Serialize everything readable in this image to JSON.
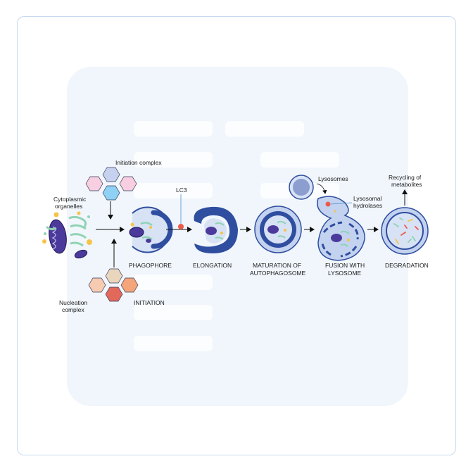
{
  "labels": {
    "initiation_complex": "Initiation complex",
    "cytoplasmic_1": "Cytoplasmic",
    "cytoplasmic_2": "organelles",
    "nucleation_1": "Nucleation",
    "nucleation_2": "complex",
    "initiation": "INITIATION",
    "lc3": "LC3",
    "phagophore": "PHAGOPHORE",
    "elongation": "ELONGATION",
    "maturation_1": "MATURATION OF",
    "maturation_2": "AUTOPHAGOSOME",
    "lysosomes": "Lysosomes",
    "hydrolases_1": "Lysosomal",
    "hydrolases_2": "hydrolases",
    "fusion_1": "FUSION WITH",
    "fusion_2": "LYSOSOME",
    "recycling_1": "Recycling of",
    "recycling_2": "metabolites",
    "degradation": "DEGRADATION"
  },
  "colors": {
    "card_border": "#c9daf0",
    "background_panel": "#f1f6fc",
    "membrane_dark": "#2f4ea0",
    "membrane_light": "#bccbeb",
    "cytoplasm": "#d7e2f5",
    "mitochondria": "#4b3a9b",
    "er_green": "#8fd3b4",
    "lc3_red": "#ec5a4a",
    "vesicle_yellow": "#f6c34a",
    "hex_blue": "#c5d1ef",
    "hex_pink": "#f7cfe0",
    "hex_cyan": "#8ed1f5",
    "hex_peach": "#f6cbb1",
    "hex_tan": "#ead6bd",
    "hex_orange": "#f5a57a",
    "hex_red": "#e2685a"
  }
}
